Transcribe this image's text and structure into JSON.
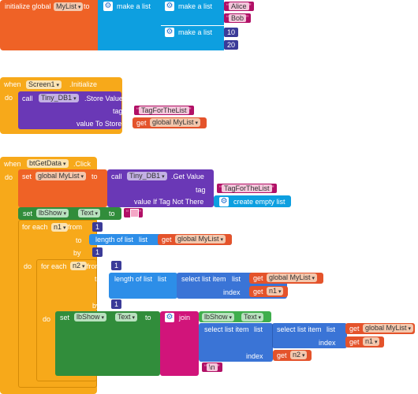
{
  "global": {
    "init_label": "initialize global",
    "var_name": "MyList",
    "to_label": "to",
    "make_list_label": "make a list",
    "names": [
      "Alice",
      "Bob"
    ],
    "numbers": [
      "10",
      "20"
    ]
  },
  "screen_init": {
    "when_label": "when",
    "component": "Screen1",
    "event": ".Initialize",
    "do_label": "do",
    "call_label": "call",
    "db": "Tiny_DB1",
    "method": ".Store Value",
    "tag_label": "tag",
    "tag_value": "TagForTheList",
    "value_label": "value To Store",
    "get_label": "get",
    "get_var": "global MyList"
  },
  "btn_click": {
    "when_label": "when",
    "component": "btGetData",
    "event": ".Click",
    "do_label": "do",
    "set_label": "set",
    "set_var": "global MyList",
    "to_label": "to",
    "call_label": "call",
    "db": "Tiny_DB1",
    "method": ".Get Value",
    "tag_label": "tag",
    "tag_value": "TagForTheList",
    "default_label": "value If Tag Not There",
    "empty_list_label": "create empty list",
    "set_show_label": "set",
    "show_comp": "lbShow",
    "show_prop": "Text",
    "for_each_label": "for each",
    "n1": "n1",
    "from_label": "from",
    "from_value": "1",
    "to2_label": "to",
    "length_label": "length of list",
    "list_label": "list",
    "by_label": "by",
    "by_value": "1",
    "n2": "n2",
    "from2_value": "1",
    "by2_value": "1",
    "select_label": "select list item",
    "index_label": "index",
    "join_label": "join",
    "newline": "\\n"
  },
  "colors": {
    "global": "#ef6226",
    "lists": "#0d9fe0",
    "event": "#f7a91a",
    "db": "#6a38b6",
    "text": "#d1147a",
    "label": "#318d3b"
  }
}
